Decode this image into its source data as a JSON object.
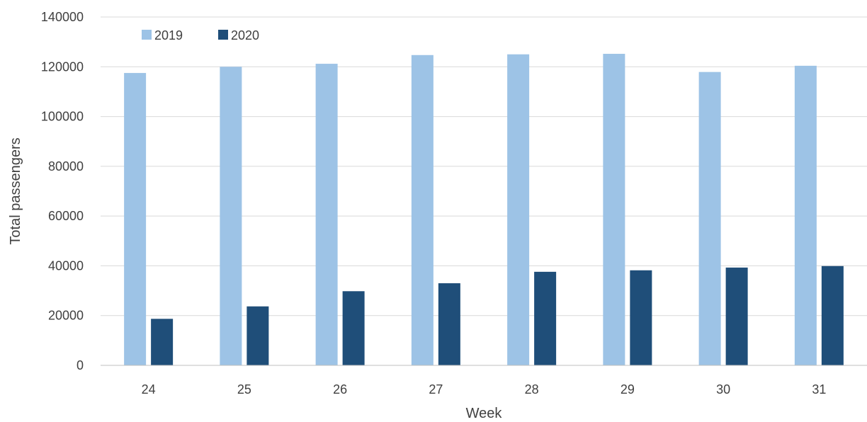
{
  "chart_data": {
    "type": "bar",
    "title": "",
    "xlabel": "Week",
    "ylabel": "Total passengers",
    "categories": [
      "24",
      "25",
      "26",
      "27",
      "28",
      "29",
      "30",
      "31"
    ],
    "series": [
      {
        "name": "2019",
        "color": "#9dc3e6",
        "values": [
          117500,
          120000,
          121200,
          124700,
          125000,
          125200,
          117900,
          120400
        ]
      },
      {
        "name": "2020",
        "color": "#1f4e79",
        "values": [
          18700,
          23700,
          29800,
          33000,
          37600,
          38200,
          39300,
          39900
        ]
      }
    ],
    "ylim": [
      0,
      140000
    ],
    "yticks": [
      "0",
      "20000",
      "40000",
      "60000",
      "80000",
      "100000",
      "120000",
      "140000"
    ],
    "grid": true,
    "legend_position": "top-left"
  }
}
